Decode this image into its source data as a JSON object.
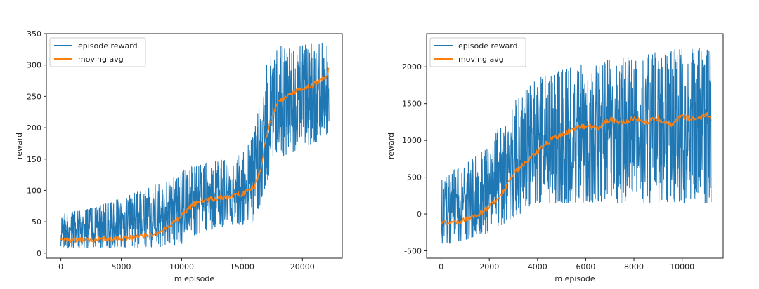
{
  "colors": {
    "reward": "#1f77b4",
    "avg": "#ff7f0e",
    "axis": "#222222"
  },
  "chart_data": [
    {
      "type": "line",
      "xlabel": "m episode",
      "ylabel": "reward",
      "xlim": [
        -1200,
        23300
      ],
      "ylim": [
        -8,
        350
      ],
      "xticks": [
        0,
        5000,
        10000,
        15000,
        20000
      ],
      "yticks": [
        0,
        50,
        100,
        150,
        200,
        250,
        300,
        350
      ],
      "legend": {
        "position": "top-left",
        "entries": [
          "episode reward",
          "moving avg"
        ]
      },
      "series": [
        {
          "name": "episode reward",
          "x": [
            0,
            2000,
            4000,
            6000,
            8000,
            9000,
            10000,
            11000,
            12000,
            13000,
            14000,
            15000,
            16000,
            16500,
            17000,
            17500,
            18000,
            19000,
            20000,
            21000,
            22000,
            22200
          ],
          "low": [
            8,
            8,
            9,
            9,
            10,
            12,
            15,
            28,
            35,
            40,
            45,
            45,
            50,
            75,
            110,
            140,
            150,
            160,
            170,
            175,
            185,
            190
          ],
          "high": [
            62,
            70,
            80,
            95,
            110,
            120,
            130,
            140,
            145,
            148,
            150,
            160,
            190,
            250,
            300,
            320,
            330,
            330,
            332,
            334,
            336,
            330
          ]
        },
        {
          "name": "moving avg",
          "x": [
            0,
            2000,
            4000,
            6000,
            7000,
            8000,
            9000,
            10000,
            11000,
            12000,
            13000,
            14000,
            15000,
            16000,
            16500,
            17000,
            17500,
            18000,
            19000,
            20000,
            21000,
            22000,
            22200
          ],
          "values": [
            20,
            20,
            22,
            25,
            28,
            32,
            42,
            60,
            78,
            85,
            88,
            90,
            95,
            105,
            130,
            185,
            220,
            240,
            255,
            262,
            270,
            280,
            292
          ]
        }
      ]
    },
    {
      "type": "line",
      "xlabel": "m episode",
      "ylabel": "reward",
      "xlim": [
        -600,
        11700
      ],
      "ylim": [
        -600,
        2450
      ],
      "xticks": [
        0,
        2000,
        4000,
        6000,
        8000,
        10000
      ],
      "yticks": [
        -500,
        0,
        500,
        1000,
        1500,
        2000
      ],
      "legend": {
        "position": "top-left",
        "entries": [
          "episode reward",
          "moving avg"
        ]
      },
      "series": [
        {
          "name": "episode reward",
          "x": [
            0,
            500,
            1000,
            1500,
            2000,
            2500,
            3000,
            3500,
            4000,
            4500,
            5000,
            5500,
            6000,
            7000,
            8000,
            9000,
            10000,
            11000,
            11200
          ],
          "low": [
            -400,
            -400,
            -350,
            -300,
            -250,
            -150,
            -50,
            50,
            150,
            150,
            150,
            150,
            150,
            150,
            150,
            150,
            150,
            150,
            150
          ],
          "high": [
            450,
            600,
            700,
            800,
            900,
            1250,
            1550,
            1700,
            1850,
            1900,
            1950,
            2000,
            2050,
            2100,
            2150,
            2200,
            2250,
            2250,
            2200
          ]
        },
        {
          "name": "moving avg",
          "x": [
            0,
            500,
            1000,
            1500,
            2000,
            2500,
            3000,
            3500,
            4000,
            4500,
            5000,
            5500,
            6000,
            6500,
            7000,
            7500,
            8000,
            8500,
            9000,
            9500,
            10000,
            10500,
            11000,
            11200
          ],
          "values": [
            -130,
            -120,
            -80,
            -20,
            100,
            250,
            550,
            700,
            850,
            1000,
            1080,
            1150,
            1200,
            1160,
            1280,
            1240,
            1300,
            1250,
            1300,
            1210,
            1330,
            1280,
            1350,
            1300
          ]
        }
      ]
    }
  ]
}
